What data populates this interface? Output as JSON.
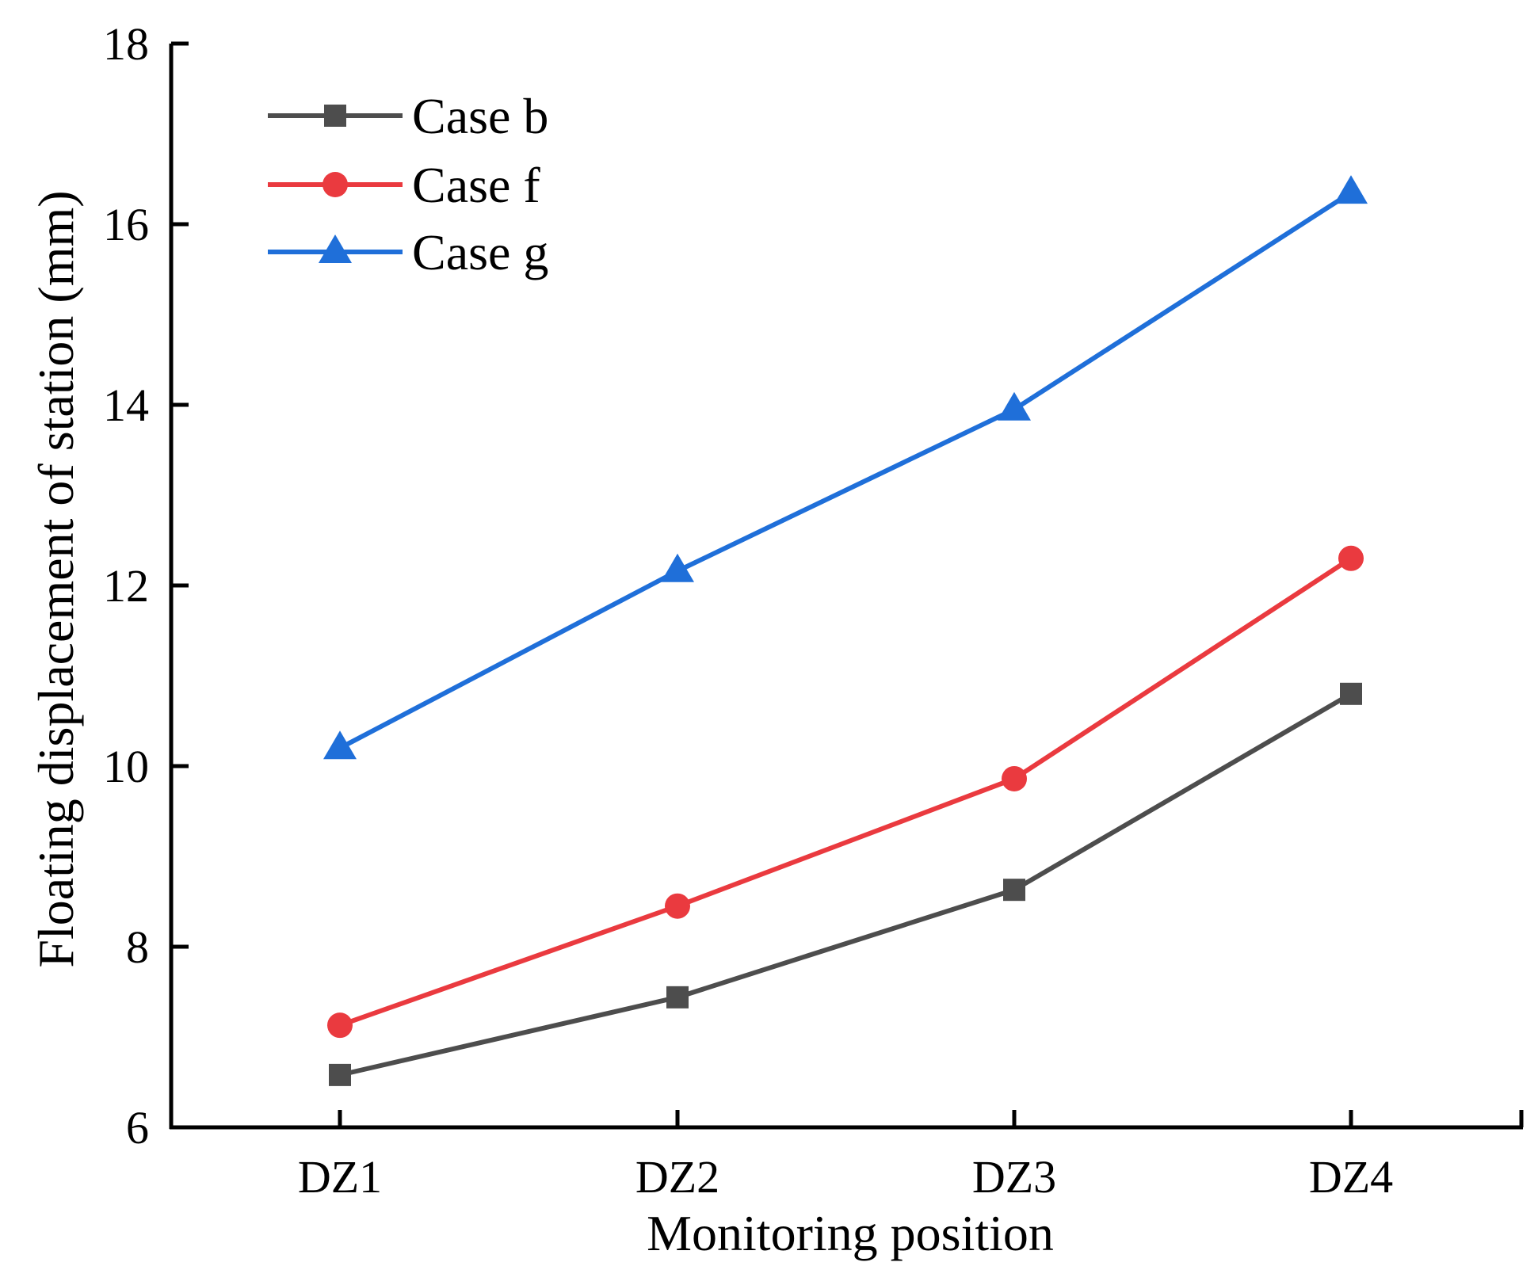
{
  "chart_data": {
    "type": "line",
    "title": "",
    "xlabel": "Monitoring position",
    "ylabel": "Floating displacement of station (mm)",
    "categories": [
      "DZ1",
      "DZ2",
      "DZ3",
      "DZ4"
    ],
    "ylim": [
      6,
      18
    ],
    "yticks": [
      6,
      8,
      10,
      12,
      14,
      16,
      18
    ],
    "grid": false,
    "legend_position": "top-left",
    "series": [
      {
        "name": "Case b",
        "marker": "square",
        "color": "#4d4d4d",
        "values": [
          6.58,
          7.44,
          8.63,
          10.8
        ]
      },
      {
        "name": "Case f",
        "marker": "circle",
        "color": "#ea3a3f",
        "values": [
          7.13,
          8.45,
          9.86,
          12.3
        ]
      },
      {
        "name": "Case g",
        "marker": "triangle",
        "color": "#1f6fd9",
        "values": [
          10.2,
          12.16,
          13.95,
          16.35
        ]
      }
    ]
  }
}
